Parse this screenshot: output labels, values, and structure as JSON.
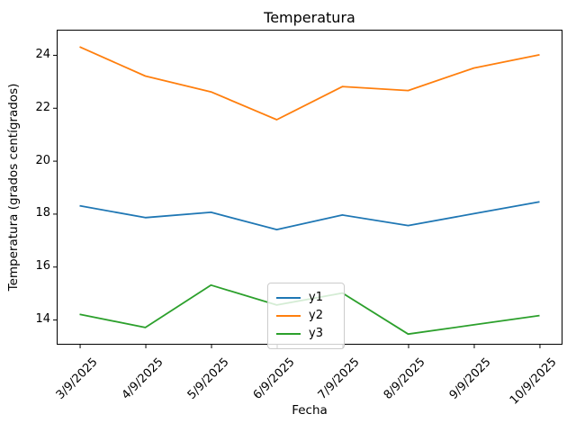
{
  "figure_title": "Temperatura",
  "chart_data": {
    "type": "line",
    "title": "Temperatura",
    "xlabel": "Fecha",
    "ylabel": "Temperatura (grados centígrados)",
    "categories": [
      "3/9/2025",
      "4/9/2025",
      "5/9/2025",
      "6/9/2025",
      "7/9/2025",
      "8/9/2025",
      "9/9/2025",
      "10/9/2025"
    ],
    "series": [
      {
        "name": "y1",
        "color": "#1f77b4",
        "values": [
          18.3,
          17.85,
          18.05,
          17.4,
          17.95,
          17.55,
          18.0,
          18.45
        ]
      },
      {
        "name": "y2",
        "color": "#ff7f0e",
        "values": [
          24.3,
          23.2,
          22.6,
          21.55,
          22.8,
          22.65,
          23.5,
          24.0
        ]
      },
      {
        "name": "y3",
        "color": "#2ca02c",
        "values": [
          14.2,
          13.7,
          15.3,
          14.55,
          15.0,
          13.45,
          13.8,
          14.15
        ]
      }
    ],
    "yticks": [
      14,
      16,
      18,
      20,
      22,
      24
    ],
    "ylim": [
      13.05,
      24.95
    ],
    "grid": false,
    "legend_position": "lower-center-inside",
    "axis_color": "#000000",
    "background_color": "#ffffff"
  }
}
